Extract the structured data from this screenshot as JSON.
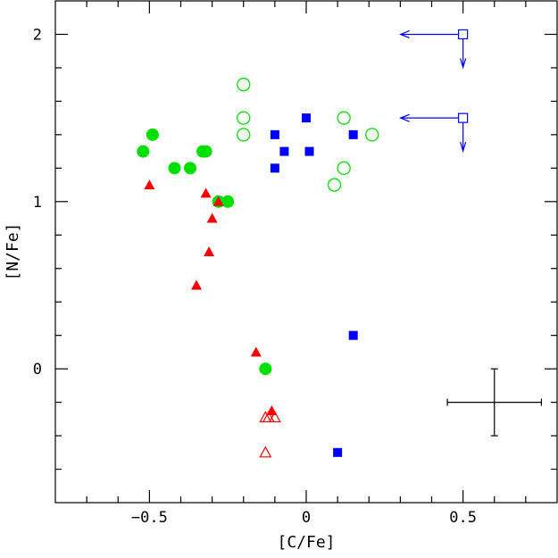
{
  "chart_data": {
    "type": "scatter",
    "xlabel": "[C/Fe]",
    "ylabel": "[N/Fe]",
    "xlim": [
      -0.8,
      0.8
    ],
    "ylim": [
      -0.8,
      2.2
    ],
    "x_ticks": [
      {
        "value": -0.5,
        "label": "−0.5"
      },
      {
        "value": 0,
        "label": "0"
      },
      {
        "value": 0.5,
        "label": "0.5"
      }
    ],
    "y_ticks": [
      {
        "value": 0,
        "label": "0"
      },
      {
        "value": 1,
        "label": "1"
      },
      {
        "value": 2,
        "label": "2"
      }
    ],
    "x_minor_step": 0.1,
    "y_minor_step": 0.2,
    "grid": false,
    "series": [
      {
        "marker": "filled-circle",
        "color": "#00e000",
        "points": [
          [
            -0.52,
            1.3
          ],
          [
            -0.49,
            1.4
          ],
          [
            -0.42,
            1.2
          ],
          [
            -0.37,
            1.2
          ],
          [
            -0.33,
            1.3
          ],
          [
            -0.32,
            1.3
          ],
          [
            -0.28,
            1.0
          ],
          [
            -0.25,
            1.0
          ],
          [
            -0.13,
            0.0
          ]
        ]
      },
      {
        "marker": "open-circle",
        "color": "#00e000",
        "points": [
          [
            -0.2,
            1.7
          ],
          [
            -0.2,
            1.5
          ],
          [
            -0.2,
            1.4
          ],
          [
            0.12,
            1.5
          ],
          [
            0.21,
            1.4
          ],
          [
            0.12,
            1.2
          ],
          [
            0.09,
            1.1
          ]
        ]
      },
      {
        "marker": "filled-square",
        "color": "#0000ff",
        "points": [
          [
            -0.1,
            1.4
          ],
          [
            -0.07,
            1.3
          ],
          [
            0.0,
            1.5
          ],
          [
            0.01,
            1.3
          ],
          [
            0.15,
            1.4
          ],
          [
            -0.1,
            1.2
          ],
          [
            0.15,
            0.2
          ],
          [
            0.1,
            -0.5
          ]
        ]
      },
      {
        "marker": "open-square-upper-limit",
        "color": "#0000ff",
        "points": [
          [
            0.5,
            2.0
          ],
          [
            0.5,
            1.5
          ]
        ]
      },
      {
        "marker": "filled-triangle",
        "color": "#ff0000",
        "points": [
          [
            -0.5,
            1.1
          ],
          [
            -0.32,
            1.05
          ],
          [
            -0.3,
            0.9
          ],
          [
            -0.28,
            1.0
          ],
          [
            -0.31,
            0.7
          ],
          [
            -0.35,
            0.5
          ],
          [
            -0.16,
            0.1
          ],
          [
            -0.11,
            -0.25
          ]
        ]
      },
      {
        "marker": "open-triangle",
        "color": "#ff0000",
        "points": [
          [
            -0.13,
            -0.29
          ],
          [
            -0.12,
            -0.29
          ],
          [
            -0.1,
            -0.29
          ],
          [
            -0.13,
            -0.5
          ]
        ]
      }
    ],
    "error_bar": {
      "center": [
        0.6,
        -0.2
      ],
      "x_error": 0.15,
      "y_error": 0.2,
      "color": "#000000"
    }
  }
}
